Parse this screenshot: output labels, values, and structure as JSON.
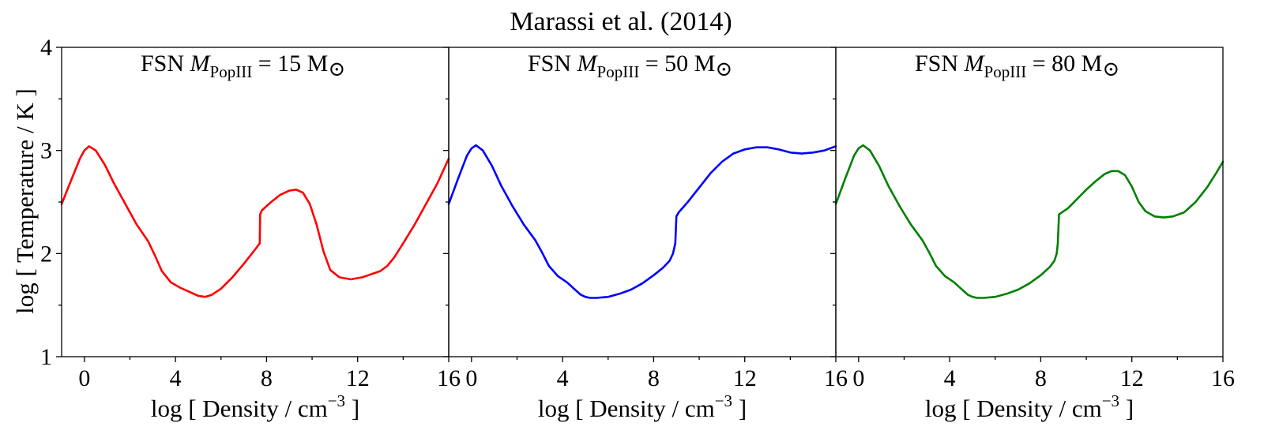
{
  "figure": {
    "title": "Marassi et al. (2014)",
    "ylabel": "log [ Temperature / K ]",
    "xlabel_main": "log [ Density / cm",
    "xlabel_sup": "−3",
    "xlabel_end": " ]"
  },
  "chart_data": [
    {
      "type": "line",
      "annotation": {
        "prefix": "FSN  ",
        "var": "M",
        "sub": "PopIII",
        "eq": " = 15 M",
        "sun": "⊙"
      },
      "xlim": [
        -1,
        16
      ],
      "ylim": [
        1,
        4
      ],
      "xticks": [
        0,
        4,
        8,
        12,
        16
      ],
      "xtick_labels": [
        "0",
        "4",
        "8",
        "12",
        "16"
      ],
      "yticks": [
        1,
        2,
        3,
        4
      ],
      "ytick_labels": [
        "1",
        "2",
        "3",
        "4"
      ],
      "series": [
        {
          "color": "#ff0000",
          "x": [
            -1.0,
            -0.6,
            -0.2,
            0.0,
            0.2,
            0.5,
            0.9,
            1.3,
            1.8,
            2.3,
            2.8,
            3.1,
            3.4,
            3.8,
            4.2,
            4.6,
            5.0,
            5.3,
            5.6,
            6.0,
            6.5,
            7.0,
            7.5,
            7.7,
            7.72,
            7.8,
            8.2,
            8.6,
            9.0,
            9.3,
            9.6,
            9.9,
            10.2,
            10.5,
            10.8,
            11.2,
            11.7,
            12.2,
            12.6,
            13.0,
            13.3,
            13.6,
            14.0,
            14.5,
            15.0,
            15.5,
            16.0
          ],
          "y": [
            2.48,
            2.7,
            2.92,
            3.0,
            3.04,
            3.0,
            2.86,
            2.68,
            2.48,
            2.28,
            2.12,
            1.98,
            1.83,
            1.72,
            1.67,
            1.63,
            1.59,
            1.58,
            1.6,
            1.66,
            1.77,
            1.9,
            2.04,
            2.1,
            2.38,
            2.42,
            2.5,
            2.57,
            2.61,
            2.62,
            2.59,
            2.48,
            2.28,
            2.02,
            1.84,
            1.77,
            1.75,
            1.77,
            1.8,
            1.83,
            1.88,
            1.96,
            2.1,
            2.28,
            2.48,
            2.68,
            2.92
          ]
        }
      ]
    },
    {
      "type": "line",
      "annotation": {
        "prefix": "FSN  ",
        "var": "M",
        "sub": "PopIII",
        "eq": " = 50 M",
        "sun": "⊙"
      },
      "xlim": [
        -1,
        16
      ],
      "ylim": [
        1,
        4
      ],
      "xticks": [
        0,
        4,
        8,
        12,
        16
      ],
      "xtick_labels": [
        "0",
        "4",
        "8",
        "12",
        "16"
      ],
      "yticks": [
        1,
        2,
        3,
        4
      ],
      "ytick_labels": [
        "",
        "",
        "",
        ""
      ],
      "series": [
        {
          "color": "#0000ff",
          "x": [
            -1.0,
            -0.6,
            -0.2,
            0.0,
            0.2,
            0.5,
            0.9,
            1.3,
            1.8,
            2.3,
            2.8,
            3.1,
            3.4,
            3.8,
            4.2,
            4.5,
            4.8,
            5.0,
            5.2,
            5.5,
            6.0,
            6.5,
            7.0,
            7.5,
            8.0,
            8.4,
            8.7,
            8.85,
            8.95,
            9.0,
            9.1,
            9.5,
            10.0,
            10.5,
            11.0,
            11.5,
            12.0,
            12.5,
            13.0,
            13.5,
            14.0,
            14.5,
            15.0,
            15.5,
            16.0
          ],
          "y": [
            2.48,
            2.72,
            2.95,
            3.02,
            3.05,
            3.0,
            2.85,
            2.66,
            2.46,
            2.28,
            2.13,
            2.01,
            1.88,
            1.78,
            1.72,
            1.66,
            1.6,
            1.58,
            1.57,
            1.57,
            1.58,
            1.61,
            1.65,
            1.71,
            1.79,
            1.86,
            1.93,
            2.0,
            2.1,
            2.36,
            2.4,
            2.5,
            2.64,
            2.78,
            2.89,
            2.97,
            3.01,
            3.03,
            3.03,
            3.01,
            2.98,
            2.97,
            2.98,
            3.0,
            3.04
          ]
        }
      ]
    },
    {
      "type": "line",
      "annotation": {
        "prefix": "FSN  ",
        "var": "M",
        "sub": "PopIII",
        "eq": " = 80 M",
        "sun": "⊙"
      },
      "xlim": [
        -1,
        16
      ],
      "ylim": [
        1,
        4
      ],
      "xticks": [
        0,
        4,
        8,
        12,
        16
      ],
      "xtick_labels": [
        "0",
        "4",
        "8",
        "12",
        "16"
      ],
      "yticks": [
        1,
        2,
        3,
        4
      ],
      "ytick_labels": [
        "",
        "",
        "",
        ""
      ],
      "series": [
        {
          "color": "#008000",
          "x": [
            -1.0,
            -0.6,
            -0.2,
            0.0,
            0.2,
            0.5,
            0.9,
            1.3,
            1.8,
            2.3,
            2.8,
            3.1,
            3.4,
            3.8,
            4.2,
            4.5,
            4.8,
            5.0,
            5.2,
            5.5,
            6.0,
            6.5,
            7.0,
            7.5,
            8.0,
            8.4,
            8.6,
            8.7,
            8.75,
            8.8,
            9.2,
            9.6,
            10.0,
            10.4,
            10.8,
            11.1,
            11.4,
            11.7,
            12.0,
            12.3,
            12.6,
            13.0,
            13.4,
            13.8,
            14.3,
            14.8,
            15.3,
            15.7,
            16.0
          ],
          "y": [
            2.48,
            2.72,
            2.95,
            3.02,
            3.05,
            3.0,
            2.85,
            2.66,
            2.46,
            2.28,
            2.13,
            2.01,
            1.88,
            1.78,
            1.72,
            1.66,
            1.6,
            1.58,
            1.57,
            1.57,
            1.58,
            1.61,
            1.65,
            1.71,
            1.79,
            1.87,
            1.93,
            2.0,
            2.1,
            2.38,
            2.44,
            2.53,
            2.62,
            2.7,
            2.77,
            2.8,
            2.8,
            2.76,
            2.65,
            2.5,
            2.41,
            2.36,
            2.35,
            2.36,
            2.4,
            2.5,
            2.64,
            2.78,
            2.89
          ]
        }
      ]
    }
  ]
}
